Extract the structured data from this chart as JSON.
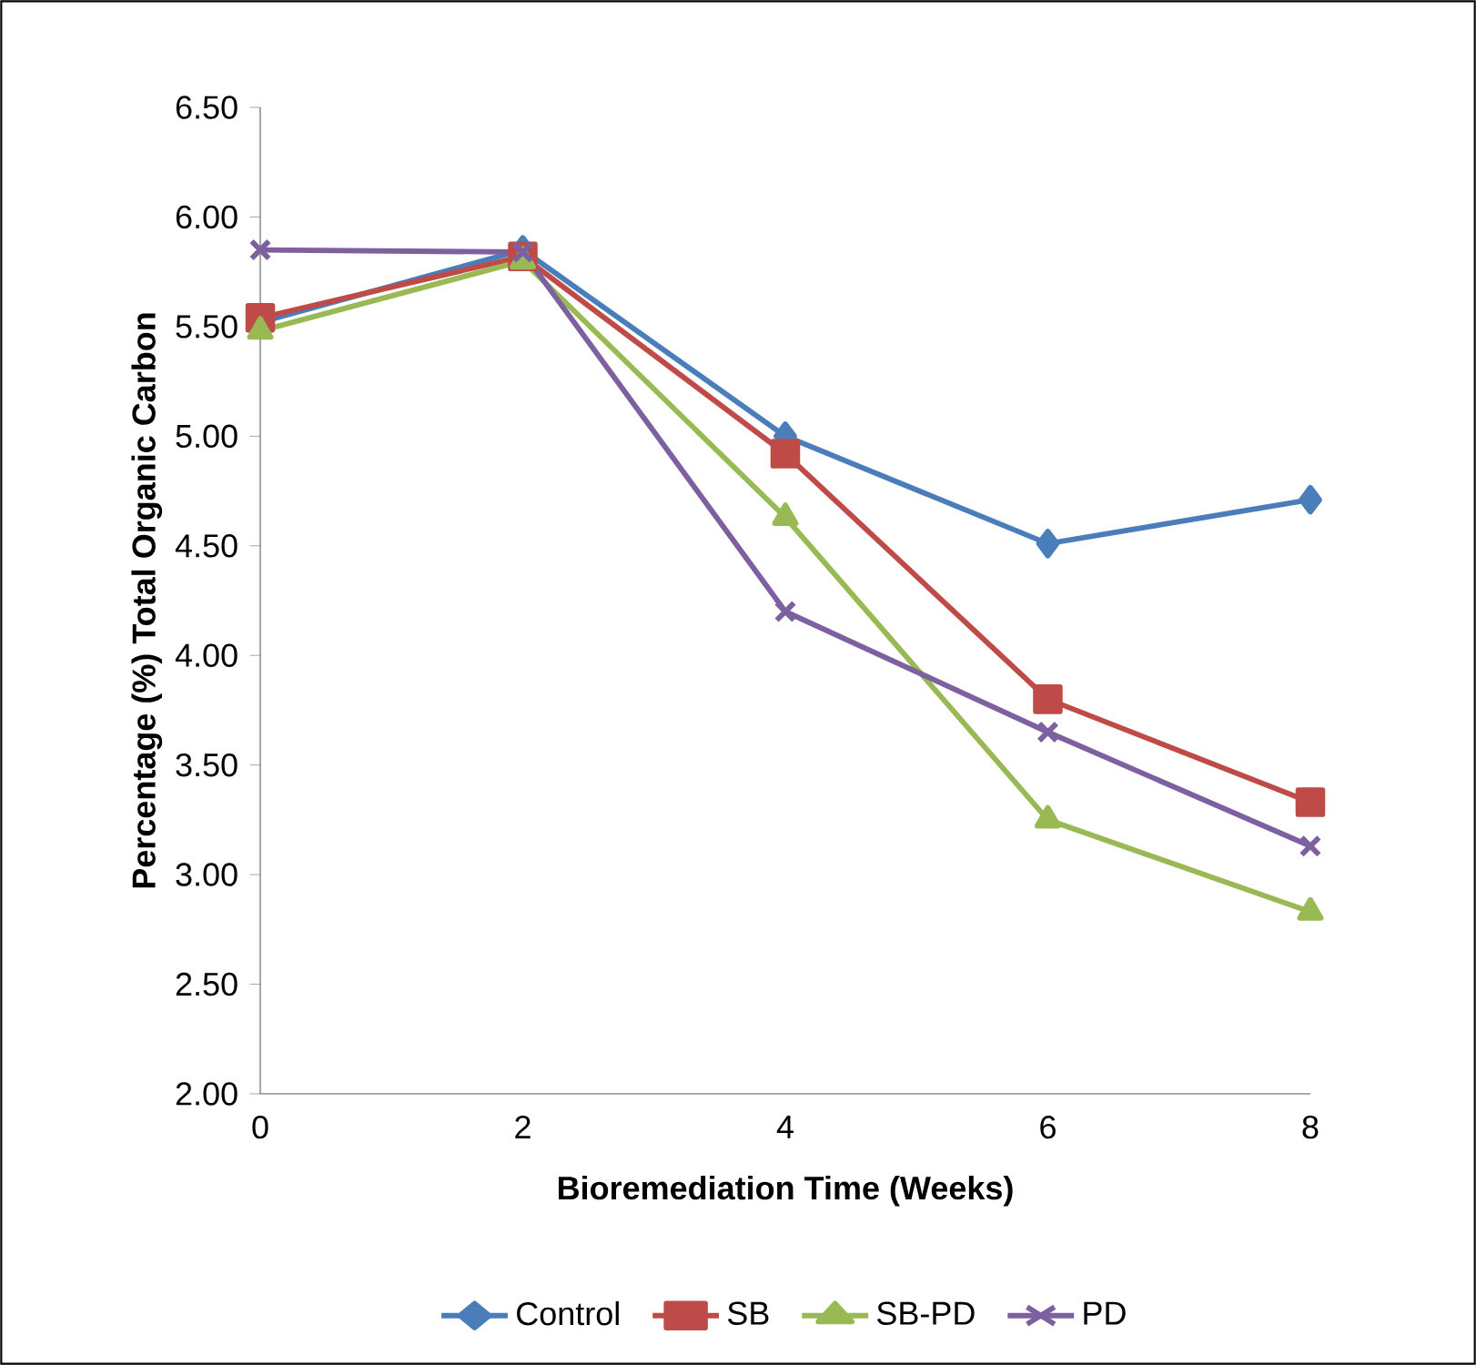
{
  "chart_data": {
    "type": "line",
    "xlabel": "Bioremediation Time (Weeks)",
    "ylabel": "Percentage (%) Total Organic Carbon",
    "x": [
      0,
      2,
      4,
      6,
      8
    ],
    "series": [
      {
        "name": "Control",
        "color": "#4a7ebb",
        "marker": "diamond",
        "values": [
          5.52,
          5.85,
          5.0,
          4.51,
          4.71
        ]
      },
      {
        "name": "SB",
        "color": "#be4b48",
        "marker": "square",
        "values": [
          5.54,
          5.82,
          4.92,
          3.8,
          3.33
        ]
      },
      {
        "name": "SB-PD",
        "color": "#98b954",
        "marker": "triangle",
        "values": [
          5.48,
          5.8,
          4.63,
          3.25,
          2.83
        ]
      },
      {
        "name": "PD",
        "color": "#7d60a0",
        "marker": "cross",
        "values": [
          5.85,
          5.84,
          4.2,
          3.65,
          3.13
        ]
      }
    ],
    "xlim": [
      0,
      8
    ],
    "xticks": [
      0,
      2,
      4,
      6,
      8
    ],
    "ylim": [
      2.0,
      6.5
    ],
    "yticks": [
      {
        "value": 2,
        "label": "2.00"
      },
      {
        "value": 2.5,
        "label": "2.50"
      },
      {
        "value": 3,
        "label": "3.00"
      },
      {
        "value": 3.5,
        "label": "3.50"
      },
      {
        "value": 4,
        "label": "4.00"
      },
      {
        "value": 4.5,
        "label": "4.50"
      },
      {
        "value": 5,
        "label": "5.00"
      },
      {
        "value": 5.5,
        "label": "5.50"
      },
      {
        "value": 6,
        "label": "6.00"
      },
      {
        "value": 6.5,
        "label": "6.50"
      }
    ],
    "grid": false,
    "legend": "bottom",
    "line_style": "solid"
  }
}
